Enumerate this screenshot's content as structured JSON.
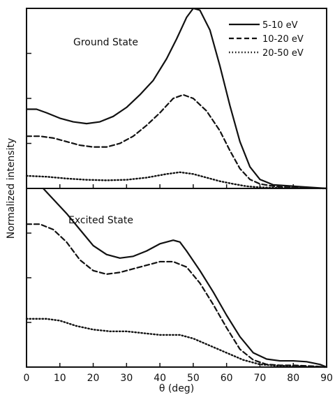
{
  "chart_data": [
    {
      "type": "line",
      "panel_label": "Ground State",
      "xlim": [
        0,
        90
      ],
      "ylim": [
        0,
        1
      ],
      "series": [
        {
          "name": "5-10 eV",
          "style": "solid",
          "points": [
            [
              0,
              0.44
            ],
            [
              3,
              0.44
            ],
            [
              6,
              0.42
            ],
            [
              10,
              0.39
            ],
            [
              14,
              0.37
            ],
            [
              18,
              0.36
            ],
            [
              22,
              0.37
            ],
            [
              26,
              0.4
            ],
            [
              30,
              0.45
            ],
            [
              34,
              0.52
            ],
            [
              38,
              0.6
            ],
            [
              42,
              0.72
            ],
            [
              45,
              0.83
            ],
            [
              48,
              0.95
            ],
            [
              50,
              1.0
            ],
            [
              52,
              0.99
            ],
            [
              55,
              0.88
            ],
            [
              58,
              0.68
            ],
            [
              61,
              0.46
            ],
            [
              64,
              0.26
            ],
            [
              67,
              0.12
            ],
            [
              70,
              0.05
            ],
            [
              74,
              0.02
            ],
            [
              78,
              0.015
            ],
            [
              82,
              0.01
            ],
            [
              86,
              0.005
            ],
            [
              90,
              0
            ]
          ]
        },
        {
          "name": "10-20 eV",
          "style": "dashed",
          "points": [
            [
              0,
              0.29
            ],
            [
              4,
              0.29
            ],
            [
              8,
              0.28
            ],
            [
              12,
              0.26
            ],
            [
              16,
              0.24
            ],
            [
              20,
              0.23
            ],
            [
              24,
              0.23
            ],
            [
              28,
              0.25
            ],
            [
              32,
              0.29
            ],
            [
              36,
              0.35
            ],
            [
              40,
              0.42
            ],
            [
              44,
              0.5
            ],
            [
              47,
              0.52
            ],
            [
              50,
              0.5
            ],
            [
              54,
              0.43
            ],
            [
              58,
              0.32
            ],
            [
              61,
              0.21
            ],
            [
              64,
              0.11
            ],
            [
              67,
              0.05
            ],
            [
              70,
              0.025
            ],
            [
              75,
              0.01
            ],
            [
              80,
              0.005
            ],
            [
              86,
              0.002
            ],
            [
              90,
              0
            ]
          ]
        },
        {
          "name": "20-50 eV",
          "style": "dotted",
          "points": [
            [
              0,
              0.07
            ],
            [
              6,
              0.065
            ],
            [
              12,
              0.055
            ],
            [
              18,
              0.048
            ],
            [
              24,
              0.045
            ],
            [
              30,
              0.048
            ],
            [
              36,
              0.06
            ],
            [
              42,
              0.08
            ],
            [
              46,
              0.09
            ],
            [
              50,
              0.08
            ],
            [
              54,
              0.06
            ],
            [
              58,
              0.04
            ],
            [
              62,
              0.025
            ],
            [
              66,
              0.012
            ],
            [
              70,
              0.006
            ],
            [
              76,
              0.003
            ],
            [
              82,
              0.002
            ],
            [
              90,
              0
            ]
          ]
        }
      ]
    },
    {
      "type": "line",
      "panel_label": "Excited State",
      "xlim": [
        0,
        90
      ],
      "ylim": [
        0,
        1
      ],
      "series": [
        {
          "name": "5-10 eV",
          "style": "solid",
          "points": [
            [
              5,
              1.0
            ],
            [
              8,
              0.94
            ],
            [
              12,
              0.86
            ],
            [
              16,
              0.77
            ],
            [
              20,
              0.68
            ],
            [
              24,
              0.63
            ],
            [
              28,
              0.61
            ],
            [
              32,
              0.62
            ],
            [
              36,
              0.65
            ],
            [
              40,
              0.69
            ],
            [
              44,
              0.71
            ],
            [
              46,
              0.7
            ],
            [
              48,
              0.65
            ],
            [
              52,
              0.54
            ],
            [
              56,
              0.42
            ],
            [
              60,
              0.29
            ],
            [
              64,
              0.17
            ],
            [
              68,
              0.08
            ],
            [
              72,
              0.045
            ],
            [
              76,
              0.035
            ],
            [
              80,
              0.035
            ],
            [
              84,
              0.03
            ],
            [
              88,
              0.015
            ],
            [
              90,
              0
            ]
          ]
        },
        {
          "name": "10-20 eV",
          "style": "dashed",
          "points": [
            [
              0,
              0.8
            ],
            [
              4,
              0.8
            ],
            [
              8,
              0.77
            ],
            [
              12,
              0.7
            ],
            [
              16,
              0.6
            ],
            [
              20,
              0.54
            ],
            [
              24,
              0.52
            ],
            [
              28,
              0.53
            ],
            [
              32,
              0.55
            ],
            [
              36,
              0.57
            ],
            [
              40,
              0.59
            ],
            [
              44,
              0.59
            ],
            [
              48,
              0.56
            ],
            [
              52,
              0.47
            ],
            [
              56,
              0.35
            ],
            [
              60,
              0.22
            ],
            [
              64,
              0.1
            ],
            [
              68,
              0.04
            ],
            [
              72,
              0.015
            ],
            [
              76,
              0.01
            ],
            [
              80,
              0.01
            ],
            [
              86,
              0.005
            ],
            [
              90,
              0
            ]
          ]
        },
        {
          "name": "20-50 eV",
          "style": "dotted",
          "points": [
            [
              0,
              0.27
            ],
            [
              6,
              0.27
            ],
            [
              10,
              0.26
            ],
            [
              15,
              0.23
            ],
            [
              20,
              0.21
            ],
            [
              25,
              0.2
            ],
            [
              30,
              0.2
            ],
            [
              35,
              0.19
            ],
            [
              40,
              0.18
            ],
            [
              46,
              0.18
            ],
            [
              50,
              0.16
            ],
            [
              55,
              0.12
            ],
            [
              60,
              0.08
            ],
            [
              65,
              0.04
            ],
            [
              70,
              0.015
            ],
            [
              75,
              0.008
            ],
            [
              80,
              0.005
            ],
            [
              90,
              0
            ]
          ]
        }
      ]
    }
  ],
  "axes": {
    "xlabel": "θ (deg)",
    "ylabel": "Normalized intensity",
    "x_ticks": [
      "0",
      "10",
      "20",
      "30",
      "40",
      "50",
      "60",
      "70",
      "80",
      "90"
    ]
  },
  "legend": {
    "placement": "top-right",
    "entries": [
      {
        "label": "5-10 eV",
        "style": "solid"
      },
      {
        "label": "10-20 eV",
        "style": "dashed"
      },
      {
        "label": "20-50 eV",
        "style": "dotted"
      }
    ]
  }
}
